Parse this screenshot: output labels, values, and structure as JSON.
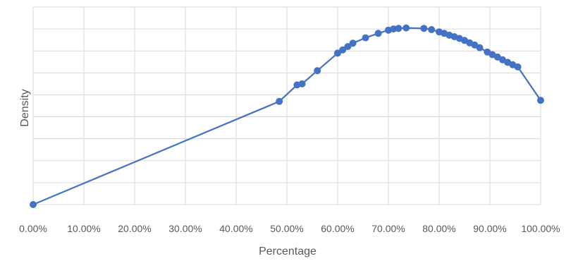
{
  "chart_data": {
    "type": "scatter",
    "xlabel": "Percentage",
    "ylabel": "Density",
    "xlim": [
      0,
      1
    ],
    "ylim": [
      0,
      0.9
    ],
    "x_ticks": [
      0,
      0.1,
      0.2,
      0.3,
      0.4,
      0.5,
      0.6,
      0.7,
      0.8,
      0.9,
      1.0
    ],
    "x_tick_labels": [
      "0.00%",
      "10.00%",
      "20.00%",
      "30.00%",
      "40.00%",
      "50.00%",
      "60.00%",
      "70.00%",
      "80.00%",
      "90.00%",
      "100.00%"
    ],
    "y_grid": [
      0,
      0.1,
      0.2,
      0.3,
      0.4,
      0.5,
      0.6,
      0.7,
      0.8,
      0.9
    ],
    "y_tick_labels_visible": false,
    "grid": true,
    "line_color": "#4472c4",
    "marker_color": "#4472c4",
    "series": [
      {
        "points": [
          [
            0.0,
            0.0
          ],
          [
            0.485,
            0.47
          ],
          [
            0.52,
            0.545
          ],
          [
            0.53,
            0.55
          ],
          [
            0.56,
            0.61
          ],
          [
            0.6,
            0.69
          ],
          [
            0.61,
            0.705
          ],
          [
            0.62,
            0.72
          ],
          [
            0.63,
            0.735
          ],
          [
            0.655,
            0.76
          ],
          [
            0.68,
            0.78
          ],
          [
            0.7,
            0.795
          ],
          [
            0.71,
            0.8
          ],
          [
            0.72,
            0.803
          ],
          [
            0.735,
            0.805
          ],
          [
            0.77,
            0.803
          ],
          [
            0.785,
            0.797
          ],
          [
            0.8,
            0.787
          ],
          [
            0.81,
            0.78
          ],
          [
            0.82,
            0.772
          ],
          [
            0.83,
            0.765
          ],
          [
            0.84,
            0.757
          ],
          [
            0.85,
            0.748
          ],
          [
            0.86,
            0.737
          ],
          [
            0.87,
            0.727
          ],
          [
            0.88,
            0.715
          ],
          [
            0.895,
            0.695
          ],
          [
            0.905,
            0.683
          ],
          [
            0.915,
            0.672
          ],
          [
            0.925,
            0.66
          ],
          [
            0.935,
            0.648
          ],
          [
            0.945,
            0.637
          ],
          [
            0.955,
            0.627
          ],
          [
            1.0,
            0.475
          ]
        ]
      }
    ]
  }
}
